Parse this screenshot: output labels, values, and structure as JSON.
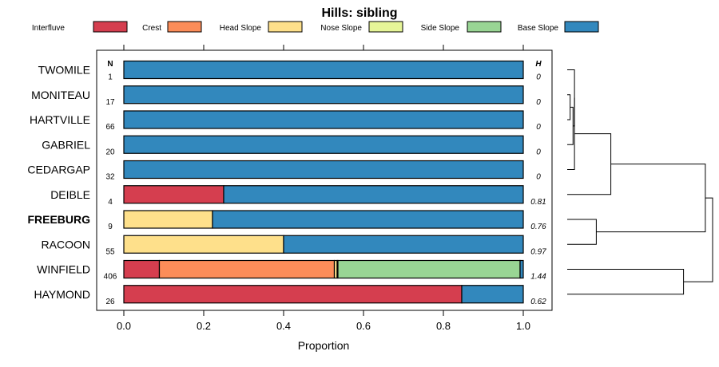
{
  "chart_data": {
    "type": "bar",
    "orientation": "horizontal-stacked",
    "title": "Hills: sibling",
    "xlabel": "Proportion",
    "ylabel": "",
    "xlim": [
      0,
      1
    ],
    "xticks": [
      "0.0",
      "0.2",
      "0.4",
      "0.6",
      "0.8",
      "1.0"
    ],
    "n_header": "N",
    "h_header": "H",
    "highlighted": "FREEBURG",
    "legend_position": "top",
    "legend": [
      {
        "name": "Interfluve",
        "color": "#D53E4F"
      },
      {
        "name": "Crest",
        "color": "#FC8D59"
      },
      {
        "name": "Head Slope",
        "color": "#FEE08B"
      },
      {
        "name": "Nose Slope",
        "color": "#E6F598"
      },
      {
        "name": "Side Slope",
        "color": "#99D594"
      },
      {
        "name": "Base Slope",
        "color": "#3288BD"
      }
    ],
    "rows": [
      {
        "label": "TWOMILE",
        "n": "1",
        "h": "0",
        "values": [
          0,
          0,
          0,
          0,
          0,
          1
        ]
      },
      {
        "label": "MONITEAU",
        "n": "17",
        "h": "0",
        "values": [
          0,
          0,
          0,
          0,
          0,
          1
        ]
      },
      {
        "label": "HARTVILLE",
        "n": "66",
        "h": "0",
        "values": [
          0,
          0,
          0,
          0,
          0,
          1
        ]
      },
      {
        "label": "GABRIEL",
        "n": "20",
        "h": "0",
        "values": [
          0,
          0,
          0,
          0,
          0,
          1
        ]
      },
      {
        "label": "CEDARGAP",
        "n": "32",
        "h": "0",
        "values": [
          0,
          0,
          0,
          0,
          0,
          1
        ]
      },
      {
        "label": "DEIBLE",
        "n": "4",
        "h": "0.81",
        "values": [
          0.25,
          0,
          0,
          0,
          0,
          0.75
        ]
      },
      {
        "label": "FREEBURG",
        "n": "9",
        "h": "0.76",
        "values": [
          0,
          0,
          0.222,
          0,
          0,
          0.778
        ]
      },
      {
        "label": "RACOON",
        "n": "55",
        "h": "0.97",
        "values": [
          0,
          0,
          0.4,
          0,
          0,
          0.6
        ]
      },
      {
        "label": "WINFIELD",
        "n": "406",
        "h": "1.44",
        "values": [
          0.089,
          0.438,
          0.007,
          0.002,
          0.456,
          0.008
        ]
      },
      {
        "label": "HAYMOND",
        "n": "26",
        "h": "0.62",
        "values": [
          0.846,
          0,
          0,
          0,
          0,
          0.154
        ]
      }
    ],
    "dendrogram": {
      "type": "hierarchical-clustering",
      "merges": [
        {
          "id": "m1",
          "left": "MONITEAU",
          "right": "HARTVILLE",
          "height": 0.02
        },
        {
          "id": "m2",
          "left": "m1",
          "right": "GABRIEL",
          "height": 0.04
        },
        {
          "id": "m3",
          "left": "TWOMILE",
          "right": "m2",
          "height": 0.05
        },
        {
          "id": "m4",
          "left": "m3",
          "right": "CEDARGAP",
          "height": 0.05
        },
        {
          "id": "m5",
          "left": "FREEBURG",
          "right": "RACOON",
          "height": 0.2
        },
        {
          "id": "m6",
          "left": "m4",
          "right": "DEIBLE",
          "height": 0.3
        },
        {
          "id": "m7",
          "left": "WINFIELD",
          "right": "HAYMOND",
          "height": 0.8
        },
        {
          "id": "m8",
          "left": "m6",
          "right": "m5",
          "height": 0.95
        },
        {
          "id": "m9",
          "left": "m8",
          "right": "m7",
          "height": 1.0
        }
      ]
    }
  }
}
